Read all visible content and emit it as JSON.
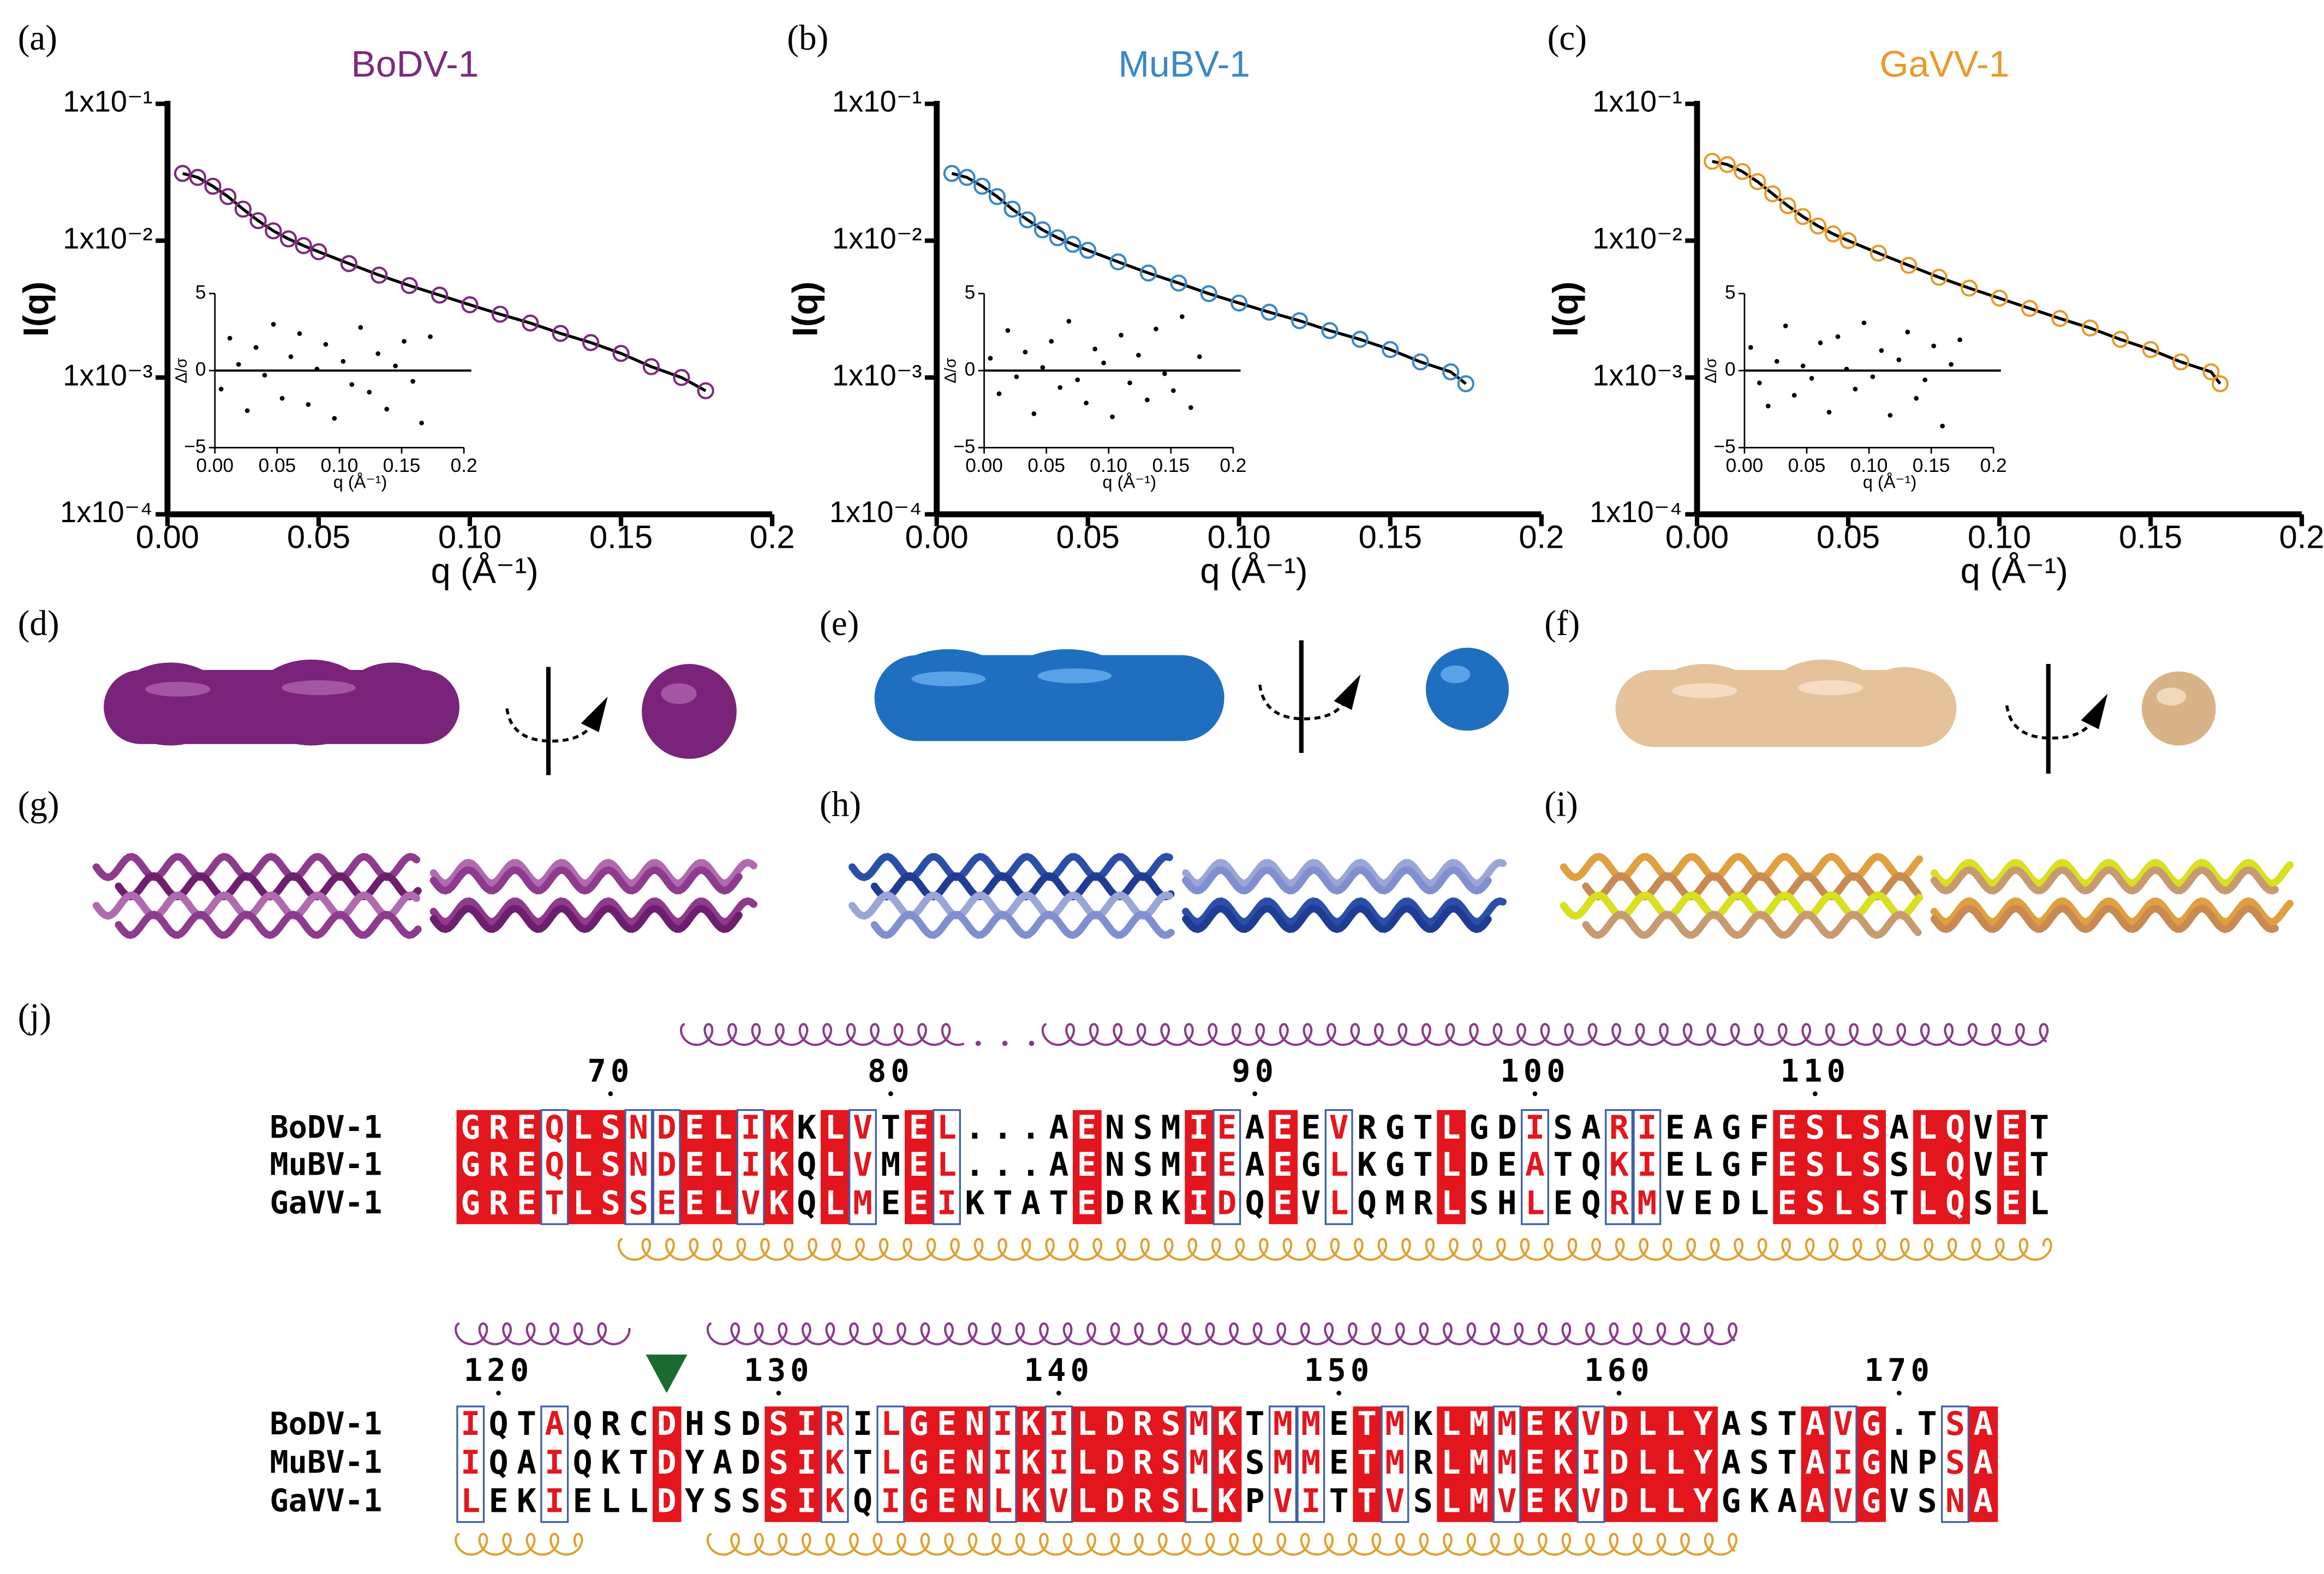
{
  "chart_data": [
    {
      "type": "scatter",
      "label": "(a)",
      "title": "BoDV-1",
      "color": "#7b2a7b",
      "xlabel": "q (Å⁻¹)",
      "ylabel": "I(q)",
      "xlim": [
        0,
        0.2
      ],
      "ylim": [
        0.0001,
        0.1
      ],
      "log_y": true,
      "xticks": [
        {
          "value": 0,
          "label": "0.00"
        },
        0.05,
        {
          "value": 0.1,
          "label": "0.10"
        },
        0.15,
        0.2
      ],
      "yticks": [
        {
          "value": 0.0001,
          "label": "1x10⁻⁴"
        },
        {
          "value": 0.001,
          "label": "1x10⁻³"
        },
        {
          "value": 0.01,
          "label": "1x10⁻²"
        },
        {
          "value": 0.1,
          "label": "1x10⁻¹"
        }
      ],
      "x": [
        0.005,
        0.01,
        0.015,
        0.02,
        0.025,
        0.03,
        0.035,
        0.04,
        0.045,
        0.05,
        0.06,
        0.07,
        0.08,
        0.09,
        0.1,
        0.11,
        0.12,
        0.13,
        0.14,
        0.15,
        0.16,
        0.17,
        0.178
      ],
      "values": [
        0.031,
        0.029,
        0.025,
        0.021,
        0.017,
        0.014,
        0.0118,
        0.0103,
        0.0092,
        0.0083,
        0.0068,
        0.0056,
        0.0047,
        0.004,
        0.0034,
        0.0029,
        0.0025,
        0.0021,
        0.0018,
        0.0015,
        0.0012,
        0.001,
        0.0008
      ],
      "fit_line": true,
      "fit_color": "#000000",
      "inset": {
        "type": "scatter",
        "xlabel": "q (Å⁻¹)",
        "ylabel": "Δ/σ",
        "xlim": [
          0,
          0.2
        ],
        "ylim": [
          -5,
          5
        ],
        "zero_line": true,
        "xticks": [
          {
            "value": 0,
            "label": "0.00"
          },
          0.05,
          {
            "value": 0.1,
            "label": "0.10"
          },
          0.15,
          0.2
        ],
        "yticks": [
          {
            "value": -5,
            "label": "−5"
          },
          0,
          5
        ],
        "x": [
          0.005,
          0.012,
          0.019,
          0.026,
          0.033,
          0.04,
          0.047,
          0.054,
          0.061,
          0.068,
          0.075,
          0.082,
          0.089,
          0.096,
          0.103,
          0.11,
          0.117,
          0.124,
          0.131,
          0.138,
          0.145,
          0.152,
          0.159,
          0.166,
          0.173
        ],
        "values": [
          -1.2,
          2.1,
          0.4,
          -2.6,
          1.5,
          -0.3,
          3.0,
          -1.8,
          0.9,
          2.4,
          -2.2,
          0.1,
          1.7,
          -3.1,
          0.6,
          -0.9,
          2.8,
          -1.4,
          1.1,
          -2.5,
          0.3,
          1.9,
          -0.7,
          -3.4,
          2.2
        ]
      }
    },
    {
      "type": "scatter",
      "label": "(b)",
      "title": "MuBV-1",
      "color": "#3a87c8",
      "xlabel": "q (Å⁻¹)",
      "ylabel": "I(q)",
      "xlim": [
        0,
        0.2
      ],
      "ylim": [
        0.0001,
        0.1
      ],
      "log_y": true,
      "xticks": [
        {
          "value": 0,
          "label": "0.00"
        },
        0.05,
        {
          "value": 0.1,
          "label": "0.10"
        },
        0.15,
        0.2
      ],
      "yticks": [
        {
          "value": 0.0001,
          "label": "1x10⁻⁴"
        },
        {
          "value": 0.001,
          "label": "1x10⁻³"
        },
        {
          "value": 0.01,
          "label": "1x10⁻²"
        },
        {
          "value": 0.1,
          "label": "1x10⁻¹"
        }
      ],
      "x": [
        0.005,
        0.01,
        0.015,
        0.02,
        0.025,
        0.03,
        0.035,
        0.04,
        0.045,
        0.05,
        0.06,
        0.07,
        0.08,
        0.09,
        0.1,
        0.11,
        0.12,
        0.13,
        0.14,
        0.15,
        0.16,
        0.17,
        0.175
      ],
      "values": [
        0.031,
        0.029,
        0.025,
        0.021,
        0.017,
        0.0142,
        0.012,
        0.0105,
        0.0094,
        0.0085,
        0.007,
        0.0058,
        0.0049,
        0.0041,
        0.0035,
        0.003,
        0.0026,
        0.0022,
        0.0019,
        0.0016,
        0.0013,
        0.0011,
        0.0009
      ],
      "fit_line": true,
      "fit_color": "#000000",
      "inset": {
        "type": "scatter",
        "xlabel": "q (Å⁻¹)",
        "ylabel": "Δ/σ",
        "xlim": [
          0,
          0.2
        ],
        "ylim": [
          -5,
          5
        ],
        "zero_line": true,
        "xticks": [
          {
            "value": 0,
            "label": "0.00"
          },
          0.05,
          {
            "value": 0.1,
            "label": "0.10"
          },
          0.15,
          0.2
        ],
        "yticks": [
          {
            "value": -5,
            "label": "−5"
          },
          0,
          5
        ],
        "x": [
          0.005,
          0.012,
          0.019,
          0.026,
          0.033,
          0.04,
          0.047,
          0.054,
          0.061,
          0.068,
          0.075,
          0.082,
          0.089,
          0.096,
          0.103,
          0.11,
          0.117,
          0.124,
          0.131,
          0.138,
          0.145,
          0.152,
          0.159,
          0.166,
          0.173
        ],
        "values": [
          0.8,
          -1.5,
          2.6,
          -0.4,
          1.2,
          -2.8,
          0.2,
          1.9,
          -1.1,
          3.2,
          -0.6,
          -2.1,
          1.4,
          0.5,
          -3.0,
          2.3,
          -0.8,
          1.0,
          -1.9,
          2.7,
          -0.2,
          -1.3,
          3.5,
          -2.4,
          0.9
        ]
      }
    },
    {
      "type": "scatter",
      "label": "(c)",
      "title": "GaVV-1",
      "color": "#e89a2c",
      "xlabel": "q (Å⁻¹)",
      "ylabel": "I(q)",
      "xlim": [
        0,
        0.2
      ],
      "ylim": [
        0.0001,
        0.1
      ],
      "log_y": true,
      "xticks": [
        {
          "value": 0,
          "label": "0.00"
        },
        0.05,
        {
          "value": 0.1,
          "label": "0.10"
        },
        0.15,
        0.2
      ],
      "yticks": [
        {
          "value": 0.0001,
          "label": "1x10⁻⁴"
        },
        {
          "value": 0.001,
          "label": "1x10⁻³"
        },
        {
          "value": 0.01,
          "label": "1x10⁻²"
        },
        {
          "value": 0.1,
          "label": "1x10⁻¹"
        }
      ],
      "x": [
        0.005,
        0.01,
        0.015,
        0.02,
        0.025,
        0.03,
        0.035,
        0.04,
        0.045,
        0.05,
        0.06,
        0.07,
        0.08,
        0.09,
        0.1,
        0.11,
        0.12,
        0.13,
        0.14,
        0.15,
        0.16,
        0.17,
        0.173
      ],
      "values": [
        0.038,
        0.036,
        0.032,
        0.027,
        0.022,
        0.018,
        0.015,
        0.0128,
        0.0112,
        0.01,
        0.0081,
        0.0066,
        0.0054,
        0.0045,
        0.0038,
        0.0032,
        0.0027,
        0.0023,
        0.0019,
        0.0016,
        0.0013,
        0.0011,
        0.0009
      ],
      "fit_line": true,
      "fit_color": "#000000",
      "inset": {
        "type": "scatter",
        "xlabel": "q (Å⁻¹)",
        "ylabel": "Δ/σ",
        "xlim": [
          0,
          0.2
        ],
        "ylim": [
          -5,
          5
        ],
        "zero_line": true,
        "xticks": [
          {
            "value": 0,
            "label": "0.00"
          },
          0.05,
          {
            "value": 0.1,
            "label": "0.10"
          },
          0.15,
          0.2
        ],
        "yticks": [
          {
            "value": -5,
            "label": "−5"
          },
          0,
          5
        ],
        "x": [
          0.005,
          0.012,
          0.019,
          0.026,
          0.033,
          0.04,
          0.047,
          0.054,
          0.061,
          0.068,
          0.075,
          0.082,
          0.089,
          0.096,
          0.103,
          0.11,
          0.117,
          0.124,
          0.131,
          0.138,
          0.145,
          0.152,
          0.159,
          0.166,
          0.173
        ],
        "values": [
          1.5,
          -0.8,
          -2.3,
          0.6,
          2.9,
          -1.6,
          0.3,
          -0.5,
          1.8,
          -2.7,
          2.2,
          0.1,
          -1.2,
          3.1,
          -0.4,
          1.3,
          -2.9,
          0.7,
          2.5,
          -1.8,
          -0.6,
          1.6,
          -3.6,
          0.4,
          2.0
        ]
      }
    }
  ],
  "structure_panels": [
    "(d)",
    "(e)",
    "(f)",
    "(g)",
    "(h)",
    "(i)"
  ],
  "alignment": {
    "label": "(j)",
    "blocks": [
      {
        "ruler": [
          {
            "label": 70,
            "column": 5
          },
          {
            "label": 80,
            "column": 15
          },
          {
            "label": 90,
            "column": 28
          },
          {
            "label": 100,
            "column": 38
          },
          {
            "label": 110,
            "column": 48
          }
        ],
        "rows": [
          {
            "name": "BoDV-1",
            "sequence": "GREQLSNDELIKKLVTEL...AENSMIEAEEVRGTLGDISARIEAGFESLSALQVET"
          },
          {
            "name": "MuBV-1",
            "sequence": "GREQLSNDELIKQLVMEL...AENSMIEAEGLKGTLDEATQKIELGFESLSSLQVET"
          },
          {
            "name": "GaVV-1",
            "sequence": "GRETLSSEELVKQLMEEIKTATEDRKIDQEVLQMRLSHLEQRMVEDLESLSTLQSEL"
          }
        ],
        "highlight": "FFFBFFBBFFBF.FB.FB....F...FB.F.B...F..B..BB....FFFF.FF.F."
      },
      {
        "ruler": [
          {
            "label": 120,
            "column": 1
          },
          {
            "label": 130,
            "column": 11
          },
          {
            "label": 140,
            "column": 21
          },
          {
            "label": 150,
            "column": 31
          },
          {
            "label": 160,
            "column": 41
          },
          {
            "label": 170,
            "column": 51
          }
        ],
        "rows": [
          {
            "name": "BoDV-1",
            "sequence": "IQTAQRCDHSDSIRILGENIKILDRSMKTMMETMKLMMEKVDLLYASTAVG.TSA"
          },
          {
            "name": "MuBV-1",
            "sequence": "IQAIQKTDYADSIKTLGENIKILDRSMKSMMETMRLMMEKIDLLYASTAIGNPSA"
          },
          {
            "name": "GaVV-1",
            "sequence": "LEKIELLDYSSSIKQIGENLKVLDRSLKPVITTVSLMVEKVDLLYGKAAVGVSNA"
          }
        ],
        "highlight": "B..B...F...FFB.BFFFBFBFFFFBF.BB.FB.FFBFFBFFFF...FBF..BF",
        "marker_column": 7,
        "marker_color": "#1a6b30"
      }
    ]
  }
}
